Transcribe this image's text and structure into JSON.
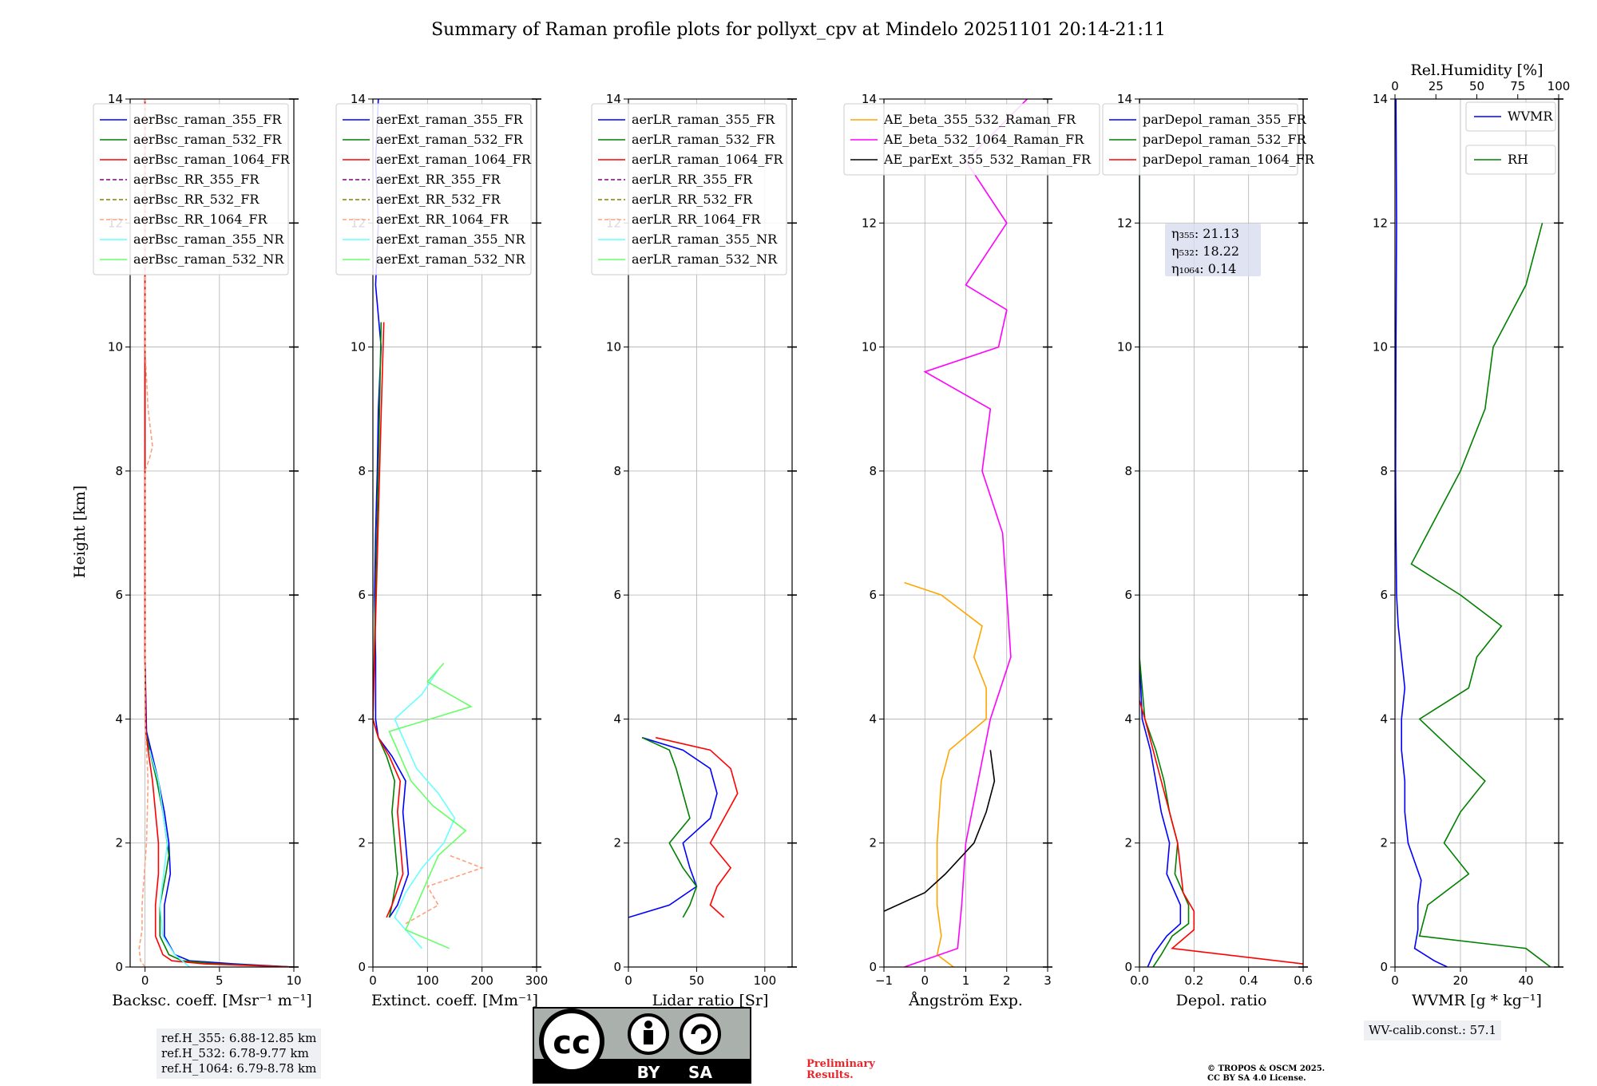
{
  "figure": {
    "title": "Summary of Raman profile plots for pollyxt_cpv at Mindelo 20251101 20:14-21:11",
    "ylabel": "Height [km]",
    "ref_heights": [
      "ref.H_355: 6.88-12.85 km",
      "ref.H_532: 6.78-9.77 km",
      "ref.H_1064: 6.79-8.78 km"
    ],
    "wv_calib": "WV-calib.const.: 57.1",
    "preliminary": [
      "Preliminary",
      "Results."
    ],
    "copyright": [
      "© TROPOS & OSCM 2025.",
      "CC BY SA 4.0 License."
    ],
    "license_badge": {
      "cc": "cc",
      "by": "BY",
      "sa": "SA"
    }
  },
  "colors": {
    "blue": "#0000ff",
    "green": "#008000",
    "red": "#ff0000",
    "purple": "#800080",
    "olive": "#808000",
    "salmon": "#ffa07a",
    "cyan": "#66ffff",
    "lightgreen": "#66ff66",
    "orange": "#ffa500",
    "magenta": "#ff00ff",
    "black": "#000000"
  },
  "chart_data": [
    {
      "type": "line",
      "xlabel": "Backsc. coeff. [Msr⁻¹ m⁻¹]",
      "xlim": [
        -1,
        10
      ],
      "ylim": [
        0,
        14
      ],
      "xticks": [
        "0",
        "5",
        "10"
      ],
      "xtick_values": [
        0,
        5,
        10
      ],
      "yticks": [
        "0",
        "2",
        "4",
        "6",
        "8",
        "10",
        "12",
        "14"
      ],
      "legend": [
        "aerBsc_raman_355_FR",
        "aerBsc_raman_532_FR",
        "aerBsc_raman_1064_FR",
        "aerBsc_RR_355_FR",
        "aerBsc_RR_532_FR",
        "aerBsc_RR_1064_FR",
        "aerBsc_raman_355_NR",
        "aerBsc_raman_532_NR"
      ],
      "series": [
        {
          "name": "aerBsc_raman_355_FR",
          "color": "blue",
          "h": [
            0,
            0.05,
            0.1,
            0.2,
            0.5,
            1,
            1.5,
            2,
            2.5,
            3,
            3.5,
            3.8,
            5,
            8,
            10,
            12,
            14
          ],
          "v": [
            10,
            6,
            3,
            2,
            1.3,
            1.3,
            1.7,
            1.6,
            1.3,
            0.9,
            0.4,
            0.1,
            0,
            0,
            0,
            0,
            0
          ]
        },
        {
          "name": "aerBsc_raman_532_FR",
          "color": "green",
          "h": [
            0,
            0.05,
            0.1,
            0.2,
            0.5,
            1,
            1.5,
            1.8,
            2.5,
            3,
            3.5,
            3.8,
            5,
            8,
            10,
            12,
            14
          ],
          "v": [
            10,
            5,
            2.5,
            1.6,
            1,
            1,
            1.4,
            1.6,
            1.2,
            0.8,
            0.3,
            0.05,
            0,
            0,
            0,
            0,
            0
          ]
        },
        {
          "name": "aerBsc_raman_1064_FR",
          "color": "red",
          "h": [
            0,
            0.05,
            0.1,
            0.2,
            0.5,
            1,
            1.5,
            2,
            2.5,
            3,
            3.5,
            3.8,
            5,
            8,
            10,
            12,
            14
          ],
          "v": [
            10,
            4,
            1.8,
            1.2,
            0.7,
            0.7,
            0.9,
            0.9,
            0.7,
            0.5,
            0.2,
            0.05,
            0,
            0,
            0,
            0,
            0
          ]
        },
        {
          "name": "aerBsc_RR_1064_FR",
          "color": "salmon",
          "dashed": true,
          "h": [
            0,
            0.1,
            0.3,
            0.6,
            1,
            2,
            3,
            4,
            6,
            8,
            8.2,
            8.4,
            8.6,
            9,
            10,
            12,
            14
          ],
          "v": [
            0,
            -0.3,
            -0.4,
            -0.2,
            -0.2,
            0.1,
            0.2,
            0,
            0,
            0,
            0.3,
            0.5,
            0.4,
            0.2,
            0,
            0,
            0
          ]
        },
        {
          "name": "aerBsc_raman_355_NR",
          "color": "cyan",
          "h": [
            0,
            0.2,
            0.5,
            1,
            2,
            3,
            3.5
          ],
          "v": [
            3,
            2,
            1.2,
            1,
            1.5,
            0.9,
            0.3
          ]
        }
      ]
    },
    {
      "type": "line",
      "xlabel": "Extinct. coeff. [Mm⁻¹]",
      "xlim": [
        0,
        300
      ],
      "ylim": [
        0,
        14
      ],
      "xticks": [
        "0",
        "100",
        "200",
        "300"
      ],
      "xtick_values": [
        0,
        100,
        200,
        300
      ],
      "yticks": [
        "0",
        "2",
        "4",
        "6",
        "8",
        "10",
        "12",
        "14"
      ],
      "legend": [
        "aerExt_raman_355_FR",
        "aerExt_raman_532_FR",
        "aerExt_raman_1064_FR",
        "aerExt_RR_355_FR",
        "aerExt_RR_532_FR",
        "aerExt_RR_1064_FR",
        "aerExt_raman_355_NR",
        "aerExt_raman_532_NR"
      ],
      "series": [
        {
          "name": "aerExt_raman_355_FR",
          "color": "blue",
          "h": [
            0.8,
            1,
            1.5,
            2,
            2.5,
            3,
            3.4,
            3.7,
            4,
            5,
            6,
            7,
            8,
            9,
            10,
            11,
            12,
            13,
            14
          ],
          "v": [
            30,
            45,
            65,
            60,
            55,
            60,
            35,
            10,
            5,
            5,
            3,
            5,
            8,
            10,
            15,
            5,
            10,
            5,
            10
          ]
        },
        {
          "name": "aerExt_raman_532_FR",
          "color": "green",
          "h": [
            0.8,
            1,
            1.5,
            2,
            2.5,
            3,
            3.4,
            3.7,
            4,
            8.9,
            10.4
          ],
          "v": [
            30,
            35,
            45,
            40,
            35,
            40,
            25,
            10,
            0,
            12,
            15
          ]
        },
        {
          "name": "aerExt_raman_1064_FR",
          "color": "red",
          "h": [
            0.8,
            1,
            1.5,
            2,
            2.5,
            3,
            3.4,
            3.7,
            4,
            8.9,
            10.4
          ],
          "v": [
            25,
            35,
            55,
            50,
            45,
            50,
            30,
            10,
            0,
            15,
            20
          ]
        },
        {
          "name": "aerExt_raman_355_NR",
          "color": "cyan",
          "h": [
            0.3,
            0.8,
            1.2,
            1.6,
            2,
            2.4,
            2.8,
            3.2,
            3.6,
            4,
            4.4,
            4.8
          ],
          "v": [
            90,
            40,
            60,
            90,
            130,
            150,
            120,
            80,
            60,
            40,
            90,
            120
          ]
        },
        {
          "name": "aerExt_raman_532_NR",
          "color": "lightgreen",
          "h": [
            0.3,
            0.6,
            1,
            1.4,
            1.8,
            2.2,
            2.6,
            3,
            3.4,
            3.8,
            4.2,
            4.6,
            4.9
          ],
          "v": [
            140,
            60,
            80,
            100,
            120,
            170,
            110,
            70,
            50,
            30,
            180,
            100,
            130
          ]
        },
        {
          "name": "aerExt_RR_1064_FR",
          "color": "salmon",
          "dashed": true,
          "h": [
            0.7,
            1,
            1.3,
            1.6,
            1.8
          ],
          "v": [
            60,
            120,
            100,
            200,
            140
          ]
        }
      ]
    },
    {
      "type": "line",
      "xlabel": "Lidar ratio [Sr]",
      "xlim": [
        0,
        120
      ],
      "ylim": [
        0,
        14
      ],
      "xticks": [
        "0",
        "50",
        "100"
      ],
      "xtick_values": [
        0,
        50,
        100
      ],
      "yticks": [
        "0",
        "2",
        "4",
        "6",
        "8",
        "10",
        "12",
        "14"
      ],
      "legend": [
        "aerLR_raman_355_FR",
        "aerLR_raman_532_FR",
        "aerLR_raman_1064_FR",
        "aerLR_RR_355_FR",
        "aerLR_RR_532_FR",
        "aerLR_RR_1064_FR",
        "aerLR_raman_355_NR",
        "aerLR_raman_532_NR"
      ],
      "series": [
        {
          "name": "aerLR_raman_355_FR",
          "color": "blue",
          "h": [
            0.8,
            1,
            1.3,
            1.6,
            2,
            2.4,
            2.8,
            3.2,
            3.5,
            3.7
          ],
          "v": [
            0,
            30,
            50,
            45,
            40,
            60,
            65,
            60,
            40,
            10
          ]
        },
        {
          "name": "aerLR_raman_532_FR",
          "color": "green",
          "h": [
            0.8,
            1,
            1.3,
            1.6,
            2,
            2.4,
            2.8,
            3.2,
            3.5,
            3.7
          ],
          "v": [
            40,
            45,
            50,
            40,
            30,
            45,
            40,
            35,
            30,
            10
          ]
        },
        {
          "name": "aerLR_raman_1064_FR",
          "color": "red",
          "h": [
            0.8,
            1,
            1.3,
            1.6,
            2,
            2.4,
            2.8,
            3.2,
            3.5,
            3.7
          ],
          "v": [
            70,
            60,
            65,
            75,
            60,
            70,
            80,
            75,
            60,
            20
          ]
        }
      ]
    },
    {
      "type": "line",
      "xlabel": "Ångström Exp.",
      "xlim": [
        -1,
        3
      ],
      "ylim": [
        0,
        14
      ],
      "xticks": [
        "−1",
        "0",
        "1",
        "2",
        "3"
      ],
      "xtick_values": [
        -1,
        0,
        1,
        2,
        3
      ],
      "yticks": [
        "0",
        "2",
        "4",
        "6",
        "8",
        "10",
        "12",
        "14"
      ],
      "legend": [
        "AE_beta_355_532_Raman_FR",
        "AE_beta_532_1064_Raman_FR",
        "AE_parExt_355_532_Raman_FR"
      ],
      "series": [
        {
          "name": "AE_beta_355_532_Raman_FR",
          "color": "orange",
          "h": [
            0,
            0.2,
            0.5,
            1,
            2,
            3,
            3.5,
            4,
            4.5,
            5,
            5.5,
            6,
            6.2
          ],
          "v": [
            0.7,
            0.3,
            0.4,
            0.3,
            0.3,
            0.4,
            0.6,
            1.5,
            1.5,
            1.2,
            1.4,
            0.4,
            -0.5
          ]
        },
        {
          "name": "AE_beta_532_1064_Raman_FR",
          "color": "magenta",
          "h": [
            0,
            0.3,
            1,
            2,
            3,
            4,
            5,
            6,
            7,
            8,
            9,
            9.6,
            10,
            10.6,
            11,
            12,
            13,
            14
          ],
          "v": [
            -0.5,
            0.8,
            0.9,
            1,
            1.3,
            1.6,
            2.1,
            2,
            1.9,
            1.4,
            1.6,
            0,
            1.8,
            2,
            1,
            2,
            1,
            2.5
          ]
        },
        {
          "name": "AE_parExt_355_532_Raman_FR",
          "color": "black",
          "h": [
            0.9,
            1.2,
            1.5,
            2,
            2.5,
            3,
            3.5
          ],
          "v": [
            -1,
            0,
            0.5,
            1.2,
            1.5,
            1.7,
            1.6
          ]
        }
      ]
    },
    {
      "type": "line",
      "xlabel": "Depol. ratio",
      "xlim": [
        0,
        0.6
      ],
      "ylim": [
        0,
        14
      ],
      "xticks": [
        "0.0",
        "0.2",
        "0.4",
        "0.6"
      ],
      "xtick_values": [
        0,
        0.2,
        0.4,
        0.6
      ],
      "yticks": [
        "0",
        "2",
        "4",
        "6",
        "8",
        "10",
        "12",
        "14"
      ],
      "legend": [
        "parDepol_raman_355_FR",
        "parDepol_raman_532_FR",
        "parDepol_raman_1064_FR"
      ],
      "annotations": [
        "η₃₅₅: 21.13",
        "η₅₃₂: 18.22",
        "η₁₀₆₄: 0.14"
      ],
      "series": [
        {
          "name": "parDepol_raman_355_FR",
          "color": "blue",
          "h": [
            0,
            0.2,
            0.5,
            0.7,
            1,
            1.5,
            2,
            2.5,
            3,
            3.5,
            4,
            5,
            6,
            8,
            10,
            12,
            14
          ],
          "v": [
            0.03,
            0.05,
            0.1,
            0.15,
            0.15,
            0.1,
            0.11,
            0.08,
            0.06,
            0.04,
            0.01,
            0,
            0,
            0,
            0,
            0,
            0
          ]
        },
        {
          "name": "parDepol_raman_532_FR",
          "color": "green",
          "h": [
            0,
            0.2,
            0.5,
            0.7,
            1,
            1.5,
            2,
            2.5,
            3,
            3.5,
            4,
            5,
            6,
            8,
            10,
            12,
            14
          ],
          "v": [
            0.05,
            0.08,
            0.12,
            0.18,
            0.18,
            0.13,
            0.14,
            0.11,
            0.09,
            0.06,
            0.02,
            0,
            0,
            0,
            0,
            0,
            0
          ]
        },
        {
          "name": "parDepol_raman_1064_FR",
          "color": "red",
          "h": [
            0.05,
            0.3,
            0.6,
            0.9,
            1.2,
            1.6,
            2,
            2.5,
            3,
            3.5,
            4,
            4.3
          ],
          "v": [
            0.6,
            0.12,
            0.2,
            0.2,
            0.16,
            0.15,
            0.14,
            0.11,
            0.08,
            0.05,
            0.02,
            0
          ]
        }
      ]
    },
    {
      "type": "line",
      "xlabel": "WVMR [g * kg⁻¹]",
      "top_label": "Rel.Humidity [%]",
      "xlim": [
        0,
        50
      ],
      "ylim": [
        0,
        14
      ],
      "top_xlim": [
        0,
        100
      ],
      "xticks": [
        "0",
        "20",
        "40"
      ],
      "xtick_values": [
        0,
        20,
        40
      ],
      "top_ticks": [
        "0",
        "25",
        "50",
        "75",
        "100"
      ],
      "top_tick_values": [
        0,
        25,
        50,
        75,
        100
      ],
      "yticks": [
        "0",
        "2",
        "4",
        "6",
        "8",
        "10",
        "12",
        "14"
      ],
      "legend": [
        "WVMR",
        "RH"
      ],
      "series": [
        {
          "name": "WVMR",
          "color": "blue",
          "h": [
            0,
            0.1,
            0.3,
            0.6,
            1,
            1.4,
            1.7,
            2,
            2.5,
            3,
            3.5,
            4,
            4.5,
            5,
            5.5,
            6,
            7,
            8,
            10,
            12,
            14
          ],
          "v": [
            16,
            12,
            6,
            7,
            7,
            8,
            6,
            4,
            3,
            3,
            2,
            2,
            3,
            2,
            1,
            0.5,
            0.3,
            0.2,
            0.3,
            0.5,
            0.3
          ]
        },
        {
          "name": "RH",
          "color": "green",
          "top": true,
          "h": [
            0,
            0.3,
            0.5,
            1,
            1.5,
            2,
            2.5,
            3,
            3.5,
            4,
            4.5,
            5,
            5.5,
            6,
            6.5,
            7,
            8,
            9,
            10,
            11,
            12
          ],
          "v": [
            95,
            80,
            15,
            20,
            45,
            30,
            40,
            55,
            35,
            15,
            45,
            50,
            65,
            40,
            10,
            20,
            40,
            55,
            60,
            80,
            90
          ]
        }
      ]
    }
  ]
}
